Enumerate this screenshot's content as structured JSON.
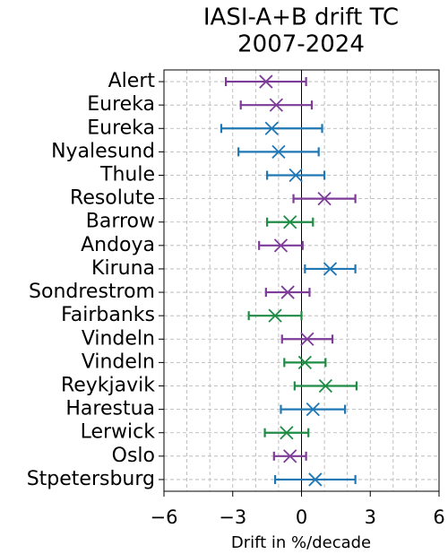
{
  "chart_data": {
    "type": "errorbar",
    "orientation": "horizontal",
    "title": [
      "IASI-A+B drift TC",
      "2007-2024"
    ],
    "xlabel": "Drift in %/decade",
    "categories": [
      "Alert",
      "Eureka",
      "Eureka",
      "Nyalesund",
      "Thule",
      "Resolute",
      "Barrow",
      "Andoya",
      "Kiruna",
      "Sondrestrom",
      "Fairbanks",
      "Vindeln",
      "Vindeln",
      "Reykjavik",
      "Harestua",
      "Lerwick",
      "Oslo",
      "Stpetersburg"
    ],
    "values": [
      -1.55,
      -1.1,
      -1.3,
      -1.0,
      -0.25,
      1.0,
      -0.5,
      -0.9,
      1.25,
      -0.6,
      -1.15,
      0.25,
      0.15,
      1.05,
      0.5,
      -0.65,
      -0.5,
      0.6
    ],
    "errors": [
      1.75,
      1.55,
      2.2,
      1.75,
      1.25,
      1.35,
      1.0,
      0.95,
      1.1,
      0.95,
      1.15,
      1.1,
      0.9,
      1.35,
      1.4,
      0.95,
      0.7,
      1.75
    ],
    "colors": [
      "#7d3c98",
      "#7d3c98",
      "#1f77b4",
      "#1f77b4",
      "#1f77b4",
      "#7d3c98",
      "#1e8c45",
      "#7d3c98",
      "#1f77b4",
      "#7d3c98",
      "#1e8c45",
      "#7d3c98",
      "#1e8c45",
      "#1e8c45",
      "#1f77b4",
      "#1e8c45",
      "#7d3c98",
      "#1f77b4"
    ],
    "xlim": [
      -6,
      6
    ],
    "xticks": [
      {
        "value": -6,
        "label": "−6"
      },
      {
        "value": -3,
        "label": "−3"
      },
      0,
      3,
      6
    ],
    "xminorticks": [
      -6,
      -5,
      -4,
      -3,
      -2,
      -1,
      0,
      1,
      2,
      3,
      4,
      5,
      6
    ],
    "reference_line": 0,
    "grid": true
  }
}
